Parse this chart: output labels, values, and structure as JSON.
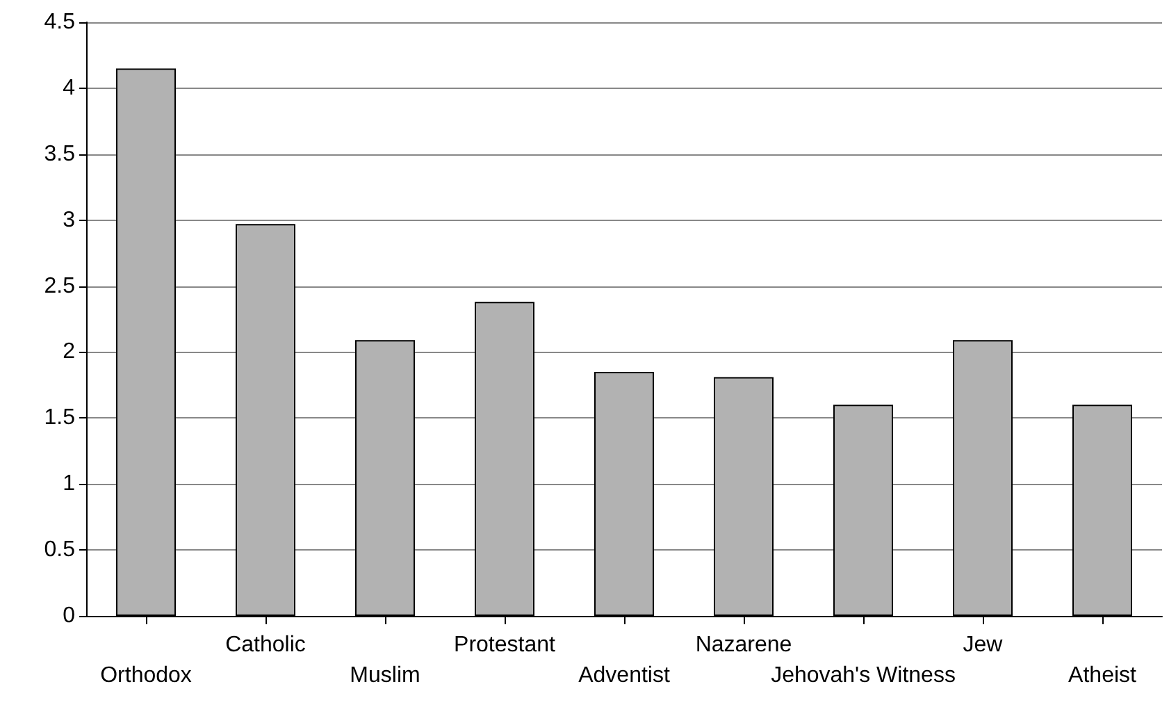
{
  "chart_data": {
    "type": "bar",
    "categories": [
      "Orthodox",
      "Catholic",
      "Muslim",
      "Protestant",
      "Adventist",
      "Nazarene",
      "Jehovah's Witness",
      "Jew",
      "Atheist"
    ],
    "values": [
      4.15,
      2.97,
      2.09,
      2.38,
      1.85,
      1.81,
      1.6,
      2.09,
      1.6
    ],
    "color": "#b2b2b2",
    "ylim": [
      0,
      4.5
    ],
    "yticks": [
      0,
      0.5,
      1,
      1.5,
      2,
      2.5,
      3,
      3.5,
      4,
      4.5
    ],
    "grid": "y"
  }
}
